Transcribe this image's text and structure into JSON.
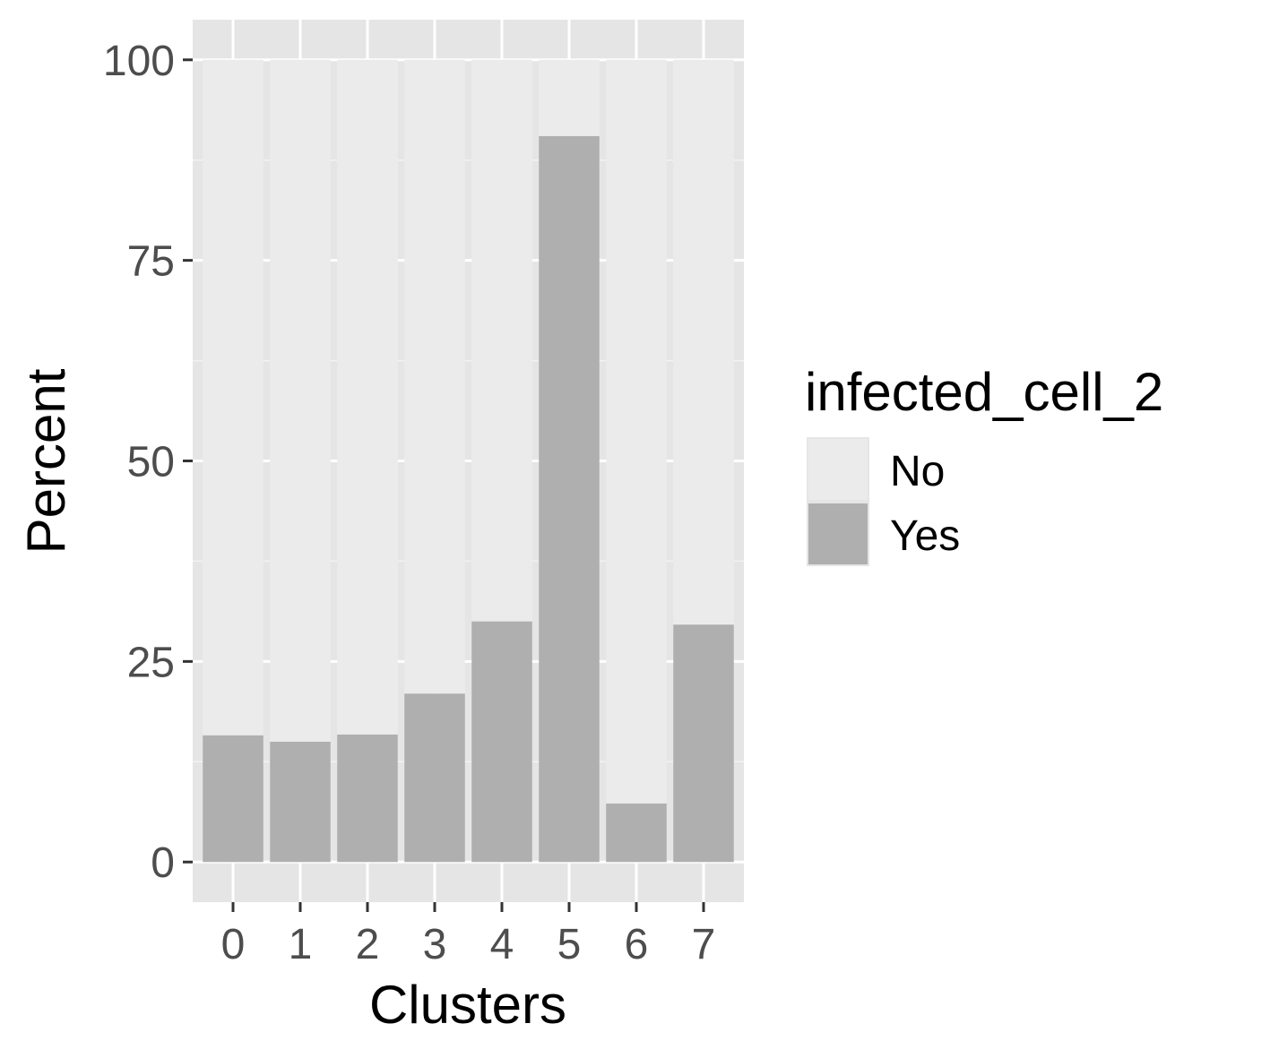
{
  "chart_data": {
    "type": "bar",
    "stacked": true,
    "categories": [
      "0",
      "1",
      "2",
      "3",
      "4",
      "5",
      "6",
      "7"
    ],
    "series": [
      {
        "name": "No",
        "values": [
          84.2,
          85.0,
          84.1,
          79.0,
          70.0,
          9.5,
          92.7,
          70.4
        ],
        "color": "#ebebeb"
      },
      {
        "name": "Yes",
        "values": [
          15.8,
          15.0,
          15.9,
          21.0,
          30.0,
          90.5,
          7.3,
          29.6
        ],
        "color": "#afafaf"
      }
    ],
    "xlabel": "Clusters",
    "ylabel": "Percent",
    "ylim": [
      -5,
      105
    ],
    "yticks": [
      0,
      25,
      50,
      75,
      100
    ],
    "ytick_labels": [
      "0",
      "25",
      "50",
      "75",
      "100"
    ],
    "grid": true,
    "panel_background": "#e5e5e5",
    "legend": {
      "title": "infected_cell_2",
      "position": "right"
    }
  }
}
